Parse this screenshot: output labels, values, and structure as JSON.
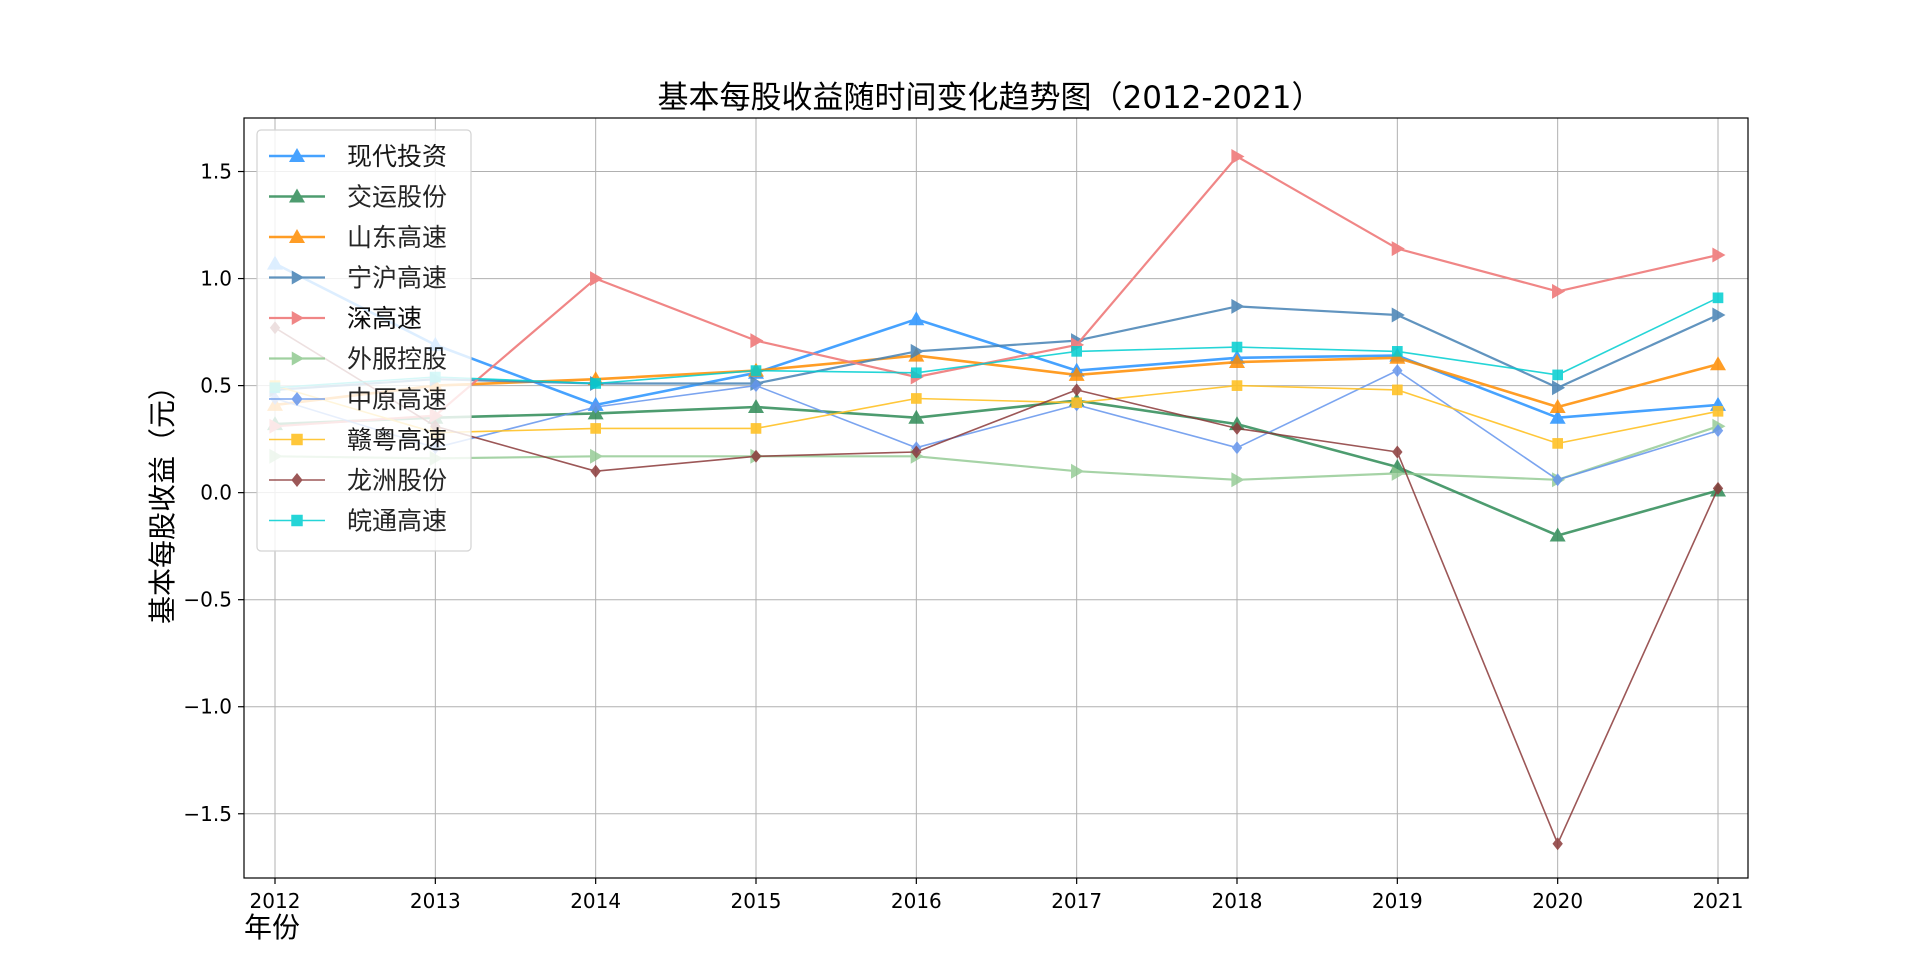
{
  "chart_data": {
    "type": "line",
    "title": "基本每股收益随时间变化趋势图（2012-2021）",
    "xlabel": "年份",
    "ylabel": "基本每股收益（元）",
    "categories": [
      "2012",
      "2013",
      "2014",
      "2015",
      "2016",
      "2017",
      "2018",
      "2019",
      "2020",
      "2021"
    ],
    "ylim": [
      -1.8,
      1.75
    ],
    "yticks": [
      -1.5,
      -1.0,
      -0.5,
      0.0,
      0.5,
      1.0,
      1.5
    ],
    "ytick_labels": [
      "−1.5",
      "−1.0",
      "−0.5",
      "0.0",
      "0.5",
      "1.0",
      "1.5"
    ],
    "grid": true,
    "legend_position": "upper-left",
    "series": [
      {
        "name": "现代投资",
        "color": "#3399ff",
        "marker": "triangle-up",
        "width": 2.6,
        "opacity": 0.9,
        "values": [
          1.07,
          0.69,
          0.41,
          0.56,
          0.81,
          0.57,
          0.63,
          0.64,
          0.35,
          0.41
        ]
      },
      {
        "name": "交运股份",
        "color": "#2e8b57",
        "marker": "triangle-up",
        "width": 2.6,
        "opacity": 0.85,
        "values": [
          0.32,
          0.35,
          0.37,
          0.4,
          0.35,
          0.43,
          0.32,
          0.12,
          -0.2,
          0.01
        ]
      },
      {
        "name": "山东高速",
        "color": "#ff8c00",
        "marker": "triangle-up",
        "width": 2.6,
        "opacity": 0.85,
        "values": [
          0.41,
          0.5,
          0.53,
          0.57,
          0.64,
          0.55,
          0.61,
          0.63,
          0.4,
          0.6
        ]
      },
      {
        "name": "宁沪高速",
        "color": "#4682b4",
        "marker": "triangle-right",
        "width": 2.2,
        "opacity": 0.85,
        "values": [
          0.48,
          0.53,
          0.51,
          0.51,
          0.66,
          0.71,
          0.87,
          0.83,
          0.49,
          0.83
        ]
      },
      {
        "name": "深高速",
        "color": "#f08080",
        "marker": "triangle-right",
        "width": 2.2,
        "opacity": 0.95,
        "values": [
          0.31,
          0.36,
          1.0,
          0.71,
          0.54,
          0.69,
          1.57,
          1.14,
          0.94,
          1.11
        ]
      },
      {
        "name": "外服控股",
        "color": "#90c990",
        "marker": "triangle-right",
        "width": 2.2,
        "opacity": 0.8,
        "values": [
          0.17,
          0.16,
          0.17,
          0.17,
          0.17,
          0.1,
          0.06,
          0.09,
          0.06,
          0.31
        ]
      },
      {
        "name": "中原高速",
        "color": "#6495ed",
        "marker": "diamond",
        "width": 1.6,
        "opacity": 0.85,
        "values": [
          0.44,
          0.21,
          0.4,
          0.5,
          0.21,
          0.41,
          0.21,
          0.57,
          0.06,
          0.29
        ]
      },
      {
        "name": "赣粤高速",
        "color": "#ffc125",
        "marker": "square",
        "width": 1.6,
        "opacity": 0.9,
        "values": [
          0.5,
          0.28,
          0.3,
          0.3,
          0.44,
          0.42,
          0.5,
          0.48,
          0.23,
          0.38
        ]
      },
      {
        "name": "龙洲股份",
        "color": "#8b3a3a",
        "marker": "diamond",
        "width": 1.6,
        "opacity": 0.85,
        "values": [
          0.77,
          0.31,
          0.1,
          0.17,
          0.19,
          0.48,
          0.3,
          0.19,
          -1.64,
          0.02
        ]
      },
      {
        "name": "皖通高速",
        "color": "#00ced1",
        "marker": "square",
        "width": 1.6,
        "opacity": 0.85,
        "values": [
          0.49,
          0.54,
          0.51,
          0.57,
          0.56,
          0.66,
          0.68,
          0.66,
          0.55,
          0.91
        ]
      }
    ]
  }
}
